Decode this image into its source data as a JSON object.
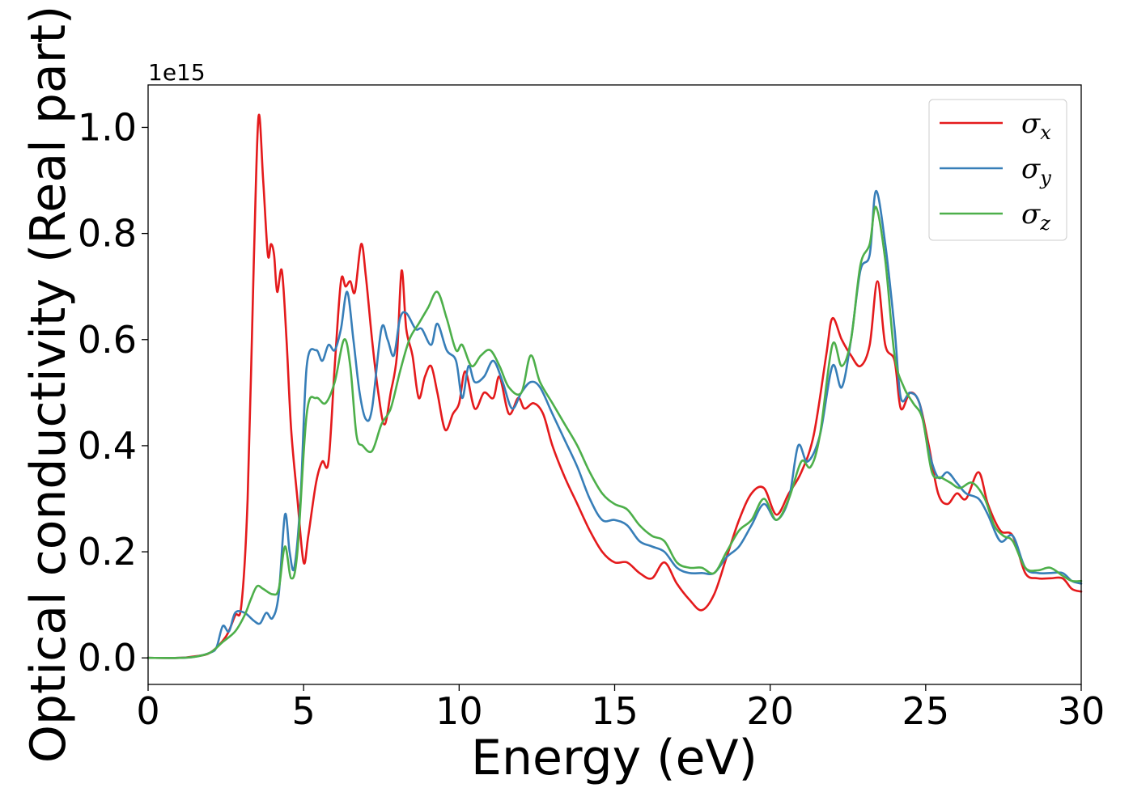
{
  "chart_data": {
    "type": "line",
    "title": "",
    "xlabel": "Energy (eV)",
    "ylabel": "Optical conductivity (Real part)",
    "y_offset_label": "1e15",
    "xlim": [
      0,
      30
    ],
    "ylim": [
      -0.05,
      1.08
    ],
    "x_ticks": [
      0,
      5,
      10,
      15,
      20,
      25,
      30
    ],
    "x_tick_labels": [
      "0",
      "5",
      "10",
      "15",
      "20",
      "25",
      "30"
    ],
    "y_ticks": [
      0.0,
      0.2,
      0.4,
      0.6,
      0.8,
      1.0
    ],
    "y_tick_labels": [
      "0.0",
      "0.2",
      "0.4",
      "0.6",
      "0.8",
      "1.0"
    ],
    "grid": false,
    "legend_position": "top-right",
    "series": [
      {
        "name": "σ_x",
        "legend_base": "σ",
        "legend_sub": "x",
        "color": "#e41a1c",
        "points": [
          [
            0,
            0
          ],
          [
            1,
            0
          ],
          [
            1.5,
            0.003
          ],
          [
            2,
            0.01
          ],
          [
            2.5,
            0.04
          ],
          [
            2.8,
            0.08
          ],
          [
            3.0,
            0.1
          ],
          [
            3.2,
            0.3
          ],
          [
            3.4,
            0.75
          ],
          [
            3.55,
            1.02
          ],
          [
            3.7,
            0.9
          ],
          [
            3.85,
            0.76
          ],
          [
            3.95,
            0.78
          ],
          [
            4.05,
            0.76
          ],
          [
            4.15,
            0.69
          ],
          [
            4.3,
            0.73
          ],
          [
            4.45,
            0.6
          ],
          [
            4.6,
            0.43
          ],
          [
            4.8,
            0.3
          ],
          [
            5.0,
            0.18
          ],
          [
            5.15,
            0.23
          ],
          [
            5.4,
            0.33
          ],
          [
            5.6,
            0.37
          ],
          [
            5.8,
            0.37
          ],
          [
            6.0,
            0.55
          ],
          [
            6.2,
            0.71
          ],
          [
            6.35,
            0.7
          ],
          [
            6.5,
            0.71
          ],
          [
            6.65,
            0.69
          ],
          [
            6.85,
            0.78
          ],
          [
            7.0,
            0.72
          ],
          [
            7.2,
            0.6
          ],
          [
            7.4,
            0.5
          ],
          [
            7.6,
            0.44
          ],
          [
            7.8,
            0.5
          ],
          [
            8.0,
            0.57
          ],
          [
            8.15,
            0.73
          ],
          [
            8.3,
            0.62
          ],
          [
            8.5,
            0.57
          ],
          [
            8.7,
            0.49
          ],
          [
            8.9,
            0.53
          ],
          [
            9.1,
            0.55
          ],
          [
            9.3,
            0.5
          ],
          [
            9.55,
            0.43
          ],
          [
            9.8,
            0.46
          ],
          [
            10.0,
            0.48
          ],
          [
            10.2,
            0.54
          ],
          [
            10.5,
            0.47
          ],
          [
            10.8,
            0.5
          ],
          [
            11.1,
            0.49
          ],
          [
            11.3,
            0.53
          ],
          [
            11.6,
            0.46
          ],
          [
            11.9,
            0.49
          ],
          [
            12.1,
            0.47
          ],
          [
            12.4,
            0.48
          ],
          [
            12.7,
            0.46
          ],
          [
            13.0,
            0.4
          ],
          [
            13.4,
            0.34
          ],
          [
            13.8,
            0.29
          ],
          [
            14.2,
            0.24
          ],
          [
            14.6,
            0.2
          ],
          [
            15.0,
            0.18
          ],
          [
            15.4,
            0.18
          ],
          [
            15.8,
            0.16
          ],
          [
            16.2,
            0.15
          ],
          [
            16.6,
            0.18
          ],
          [
            17.0,
            0.14
          ],
          [
            17.4,
            0.11
          ],
          [
            17.8,
            0.09
          ],
          [
            18.2,
            0.12
          ],
          [
            18.6,
            0.19
          ],
          [
            19.0,
            0.26
          ],
          [
            19.4,
            0.31
          ],
          [
            19.8,
            0.32
          ],
          [
            20.2,
            0.27
          ],
          [
            20.6,
            0.31
          ],
          [
            21.0,
            0.35
          ],
          [
            21.4,
            0.42
          ],
          [
            21.8,
            0.57
          ],
          [
            22.0,
            0.64
          ],
          [
            22.3,
            0.6
          ],
          [
            22.6,
            0.57
          ],
          [
            22.9,
            0.55
          ],
          [
            23.2,
            0.59
          ],
          [
            23.45,
            0.71
          ],
          [
            23.7,
            0.59
          ],
          [
            24.0,
            0.56
          ],
          [
            24.2,
            0.47
          ],
          [
            24.5,
            0.5
          ],
          [
            24.8,
            0.48
          ],
          [
            25.1,
            0.4
          ],
          [
            25.4,
            0.31
          ],
          [
            25.7,
            0.29
          ],
          [
            26.0,
            0.31
          ],
          [
            26.3,
            0.3
          ],
          [
            26.7,
            0.35
          ],
          [
            27.0,
            0.29
          ],
          [
            27.4,
            0.24
          ],
          [
            27.8,
            0.23
          ],
          [
            28.2,
            0.16
          ],
          [
            28.6,
            0.15
          ],
          [
            29.0,
            0.15
          ],
          [
            29.4,
            0.15
          ],
          [
            29.7,
            0.13
          ],
          [
            30.0,
            0.125
          ]
        ]
      },
      {
        "name": "σ_y",
        "legend_base": "σ",
        "legend_sub": "y",
        "color": "#377eb8",
        "points": [
          [
            0,
            0
          ],
          [
            1,
            0
          ],
          [
            1.5,
            0.002
          ],
          [
            2,
            0.01
          ],
          [
            2.2,
            0.02
          ],
          [
            2.4,
            0.06
          ],
          [
            2.6,
            0.05
          ],
          [
            2.8,
            0.085
          ],
          [
            3.1,
            0.085
          ],
          [
            3.4,
            0.07
          ],
          [
            3.6,
            0.065
          ],
          [
            3.8,
            0.085
          ],
          [
            4.0,
            0.075
          ],
          [
            4.2,
            0.12
          ],
          [
            4.4,
            0.27
          ],
          [
            4.55,
            0.2
          ],
          [
            4.7,
            0.17
          ],
          [
            4.9,
            0.3
          ],
          [
            5.1,
            0.55
          ],
          [
            5.4,
            0.58
          ],
          [
            5.6,
            0.56
          ],
          [
            5.8,
            0.59
          ],
          [
            6.0,
            0.58
          ],
          [
            6.2,
            0.62
          ],
          [
            6.4,
            0.69
          ],
          [
            6.6,
            0.6
          ],
          [
            6.8,
            0.5
          ],
          [
            7.0,
            0.45
          ],
          [
            7.2,
            0.47
          ],
          [
            7.5,
            0.62
          ],
          [
            7.7,
            0.6
          ],
          [
            7.9,
            0.57
          ],
          [
            8.1,
            0.64
          ],
          [
            8.3,
            0.65
          ],
          [
            8.6,
            0.62
          ],
          [
            8.8,
            0.62
          ],
          [
            9.1,
            0.59
          ],
          [
            9.3,
            0.63
          ],
          [
            9.6,
            0.58
          ],
          [
            9.9,
            0.56
          ],
          [
            10.1,
            0.49
          ],
          [
            10.3,
            0.55
          ],
          [
            10.5,
            0.52
          ],
          [
            10.8,
            0.53
          ],
          [
            11.1,
            0.56
          ],
          [
            11.4,
            0.52
          ],
          [
            11.7,
            0.47
          ],
          [
            12.0,
            0.5
          ],
          [
            12.3,
            0.52
          ],
          [
            12.6,
            0.51
          ],
          [
            13.0,
            0.46
          ],
          [
            13.4,
            0.41
          ],
          [
            13.8,
            0.36
          ],
          [
            14.2,
            0.3
          ],
          [
            14.6,
            0.26
          ],
          [
            15.0,
            0.26
          ],
          [
            15.4,
            0.25
          ],
          [
            15.8,
            0.22
          ],
          [
            16.2,
            0.21
          ],
          [
            16.6,
            0.2
          ],
          [
            17.0,
            0.17
          ],
          [
            17.4,
            0.16
          ],
          [
            17.8,
            0.16
          ],
          [
            18.2,
            0.16
          ],
          [
            18.6,
            0.19
          ],
          [
            19.0,
            0.21
          ],
          [
            19.4,
            0.25
          ],
          [
            19.8,
            0.29
          ],
          [
            20.2,
            0.26
          ],
          [
            20.6,
            0.3
          ],
          [
            20.9,
            0.4
          ],
          [
            21.2,
            0.37
          ],
          [
            21.6,
            0.42
          ],
          [
            22.0,
            0.55
          ],
          [
            22.3,
            0.51
          ],
          [
            22.6,
            0.6
          ],
          [
            22.9,
            0.73
          ],
          [
            23.2,
            0.76
          ],
          [
            23.4,
            0.88
          ],
          [
            23.7,
            0.78
          ],
          [
            24.0,
            0.62
          ],
          [
            24.2,
            0.49
          ],
          [
            24.5,
            0.5
          ],
          [
            24.8,
            0.48
          ],
          [
            25.1,
            0.39
          ],
          [
            25.4,
            0.34
          ],
          [
            25.7,
            0.35
          ],
          [
            26.0,
            0.33
          ],
          [
            26.3,
            0.31
          ],
          [
            26.7,
            0.3
          ],
          [
            27.0,
            0.27
          ],
          [
            27.4,
            0.22
          ],
          [
            27.8,
            0.23
          ],
          [
            28.2,
            0.17
          ],
          [
            28.6,
            0.16
          ],
          [
            29.0,
            0.16
          ],
          [
            29.4,
            0.16
          ],
          [
            29.7,
            0.145
          ],
          [
            30.0,
            0.14
          ]
        ]
      },
      {
        "name": "σ_z",
        "legend_base": "σ",
        "legend_sub": "z",
        "color": "#4daf4a",
        "points": [
          [
            0,
            0
          ],
          [
            1,
            0
          ],
          [
            1.5,
            0.002
          ],
          [
            2,
            0.01
          ],
          [
            2.4,
            0.03
          ],
          [
            2.8,
            0.05
          ],
          [
            3.1,
            0.08
          ],
          [
            3.3,
            0.11
          ],
          [
            3.5,
            0.135
          ],
          [
            3.7,
            0.13
          ],
          [
            4.0,
            0.12
          ],
          [
            4.2,
            0.13
          ],
          [
            4.4,
            0.21
          ],
          [
            4.6,
            0.15
          ],
          [
            4.8,
            0.2
          ],
          [
            5.1,
            0.46
          ],
          [
            5.4,
            0.49
          ],
          [
            5.7,
            0.48
          ],
          [
            6.0,
            0.52
          ],
          [
            6.3,
            0.6
          ],
          [
            6.5,
            0.55
          ],
          [
            6.7,
            0.42
          ],
          [
            6.9,
            0.4
          ],
          [
            7.2,
            0.39
          ],
          [
            7.5,
            0.44
          ],
          [
            7.8,
            0.47
          ],
          [
            8.1,
            0.54
          ],
          [
            8.4,
            0.6
          ],
          [
            8.7,
            0.63
          ],
          [
            9.0,
            0.66
          ],
          [
            9.3,
            0.69
          ],
          [
            9.6,
            0.64
          ],
          [
            9.9,
            0.58
          ],
          [
            10.1,
            0.59
          ],
          [
            10.4,
            0.55
          ],
          [
            10.7,
            0.57
          ],
          [
            11.0,
            0.58
          ],
          [
            11.3,
            0.55
          ],
          [
            11.6,
            0.51
          ],
          [
            12.0,
            0.5
          ],
          [
            12.3,
            0.57
          ],
          [
            12.6,
            0.52
          ],
          [
            13.0,
            0.48
          ],
          [
            13.4,
            0.44
          ],
          [
            13.8,
            0.4
          ],
          [
            14.2,
            0.35
          ],
          [
            14.6,
            0.31
          ],
          [
            15.0,
            0.29
          ],
          [
            15.4,
            0.28
          ],
          [
            15.8,
            0.25
          ],
          [
            16.2,
            0.23
          ],
          [
            16.6,
            0.22
          ],
          [
            17.0,
            0.18
          ],
          [
            17.4,
            0.17
          ],
          [
            17.8,
            0.17
          ],
          [
            18.2,
            0.16
          ],
          [
            18.6,
            0.2
          ],
          [
            19.0,
            0.24
          ],
          [
            19.4,
            0.26
          ],
          [
            19.8,
            0.3
          ],
          [
            20.2,
            0.26
          ],
          [
            20.6,
            0.3
          ],
          [
            21.0,
            0.37
          ],
          [
            21.3,
            0.36
          ],
          [
            21.6,
            0.42
          ],
          [
            22.0,
            0.59
          ],
          [
            22.3,
            0.55
          ],
          [
            22.6,
            0.6
          ],
          [
            22.9,
            0.74
          ],
          [
            23.2,
            0.78
          ],
          [
            23.4,
            0.85
          ],
          [
            23.7,
            0.75
          ],
          [
            24.0,
            0.57
          ],
          [
            24.3,
            0.51
          ],
          [
            24.6,
            0.48
          ],
          [
            24.9,
            0.45
          ],
          [
            25.2,
            0.35
          ],
          [
            25.5,
            0.34
          ],
          [
            25.8,
            0.33
          ],
          [
            26.1,
            0.32
          ],
          [
            26.5,
            0.33
          ],
          [
            26.9,
            0.3
          ],
          [
            27.2,
            0.25
          ],
          [
            27.5,
            0.23
          ],
          [
            27.8,
            0.22
          ],
          [
            28.2,
            0.17
          ],
          [
            28.6,
            0.165
          ],
          [
            29.0,
            0.17
          ],
          [
            29.4,
            0.155
          ],
          [
            29.7,
            0.145
          ],
          [
            30.0,
            0.145
          ]
        ]
      }
    ]
  }
}
